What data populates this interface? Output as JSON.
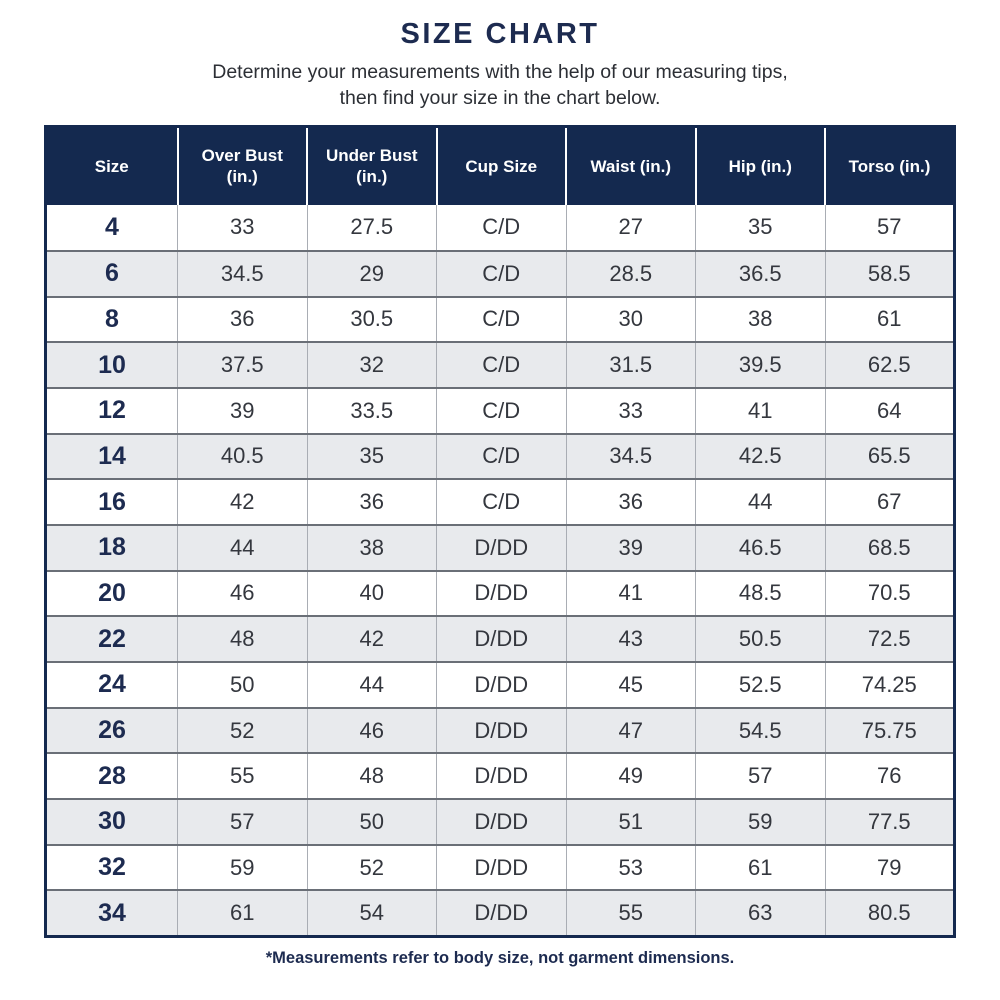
{
  "header": {
    "title": "SIZE CHART",
    "subtitle_line1": "Determine your measurements with the help of our measuring tips,",
    "subtitle_line2": "then find your size in the chart below."
  },
  "footnote": "*Measurements refer to body size, not garment dimensions.",
  "colors": {
    "navy": "#14294f",
    "title_navy": "#1d2b50",
    "row_alt_gray": "#e8eaed",
    "body_text": "#34373e",
    "row_border": "#6a6f77",
    "col_border": "#a9adb4"
  },
  "chart_data": {
    "type": "table",
    "title": "SIZE CHART",
    "columns": [
      "Size",
      "Over Bust (in.)",
      "Under Bust (in.)",
      "Cup Size",
      "Waist (in.)",
      "Hip (in.)",
      "Torso (in.)"
    ],
    "rows": [
      [
        "4",
        "33",
        "27.5",
        "C/D",
        "27",
        "35",
        "57"
      ],
      [
        "6",
        "34.5",
        "29",
        "C/D",
        "28.5",
        "36.5",
        "58.5"
      ],
      [
        "8",
        "36",
        "30.5",
        "C/D",
        "30",
        "38",
        "61"
      ],
      [
        "10",
        "37.5",
        "32",
        "C/D",
        "31.5",
        "39.5",
        "62.5"
      ],
      [
        "12",
        "39",
        "33.5",
        "C/D",
        "33",
        "41",
        "64"
      ],
      [
        "14",
        "40.5",
        "35",
        "C/D",
        "34.5",
        "42.5",
        "65.5"
      ],
      [
        "16",
        "42",
        "36",
        "C/D",
        "36",
        "44",
        "67"
      ],
      [
        "18",
        "44",
        "38",
        "D/DD",
        "39",
        "46.5",
        "68.5"
      ],
      [
        "20",
        "46",
        "40",
        "D/DD",
        "41",
        "48.5",
        "70.5"
      ],
      [
        "22",
        "48",
        "42",
        "D/DD",
        "43",
        "50.5",
        "72.5"
      ],
      [
        "24",
        "50",
        "44",
        "D/DD",
        "45",
        "52.5",
        "74.25"
      ],
      [
        "26",
        "52",
        "46",
        "D/DD",
        "47",
        "54.5",
        "75.75"
      ],
      [
        "28",
        "55",
        "48",
        "D/DD",
        "49",
        "57",
        "76"
      ],
      [
        "30",
        "57",
        "50",
        "D/DD",
        "51",
        "59",
        "77.5"
      ],
      [
        "32",
        "59",
        "52",
        "D/DD",
        "53",
        "61",
        "79"
      ],
      [
        "34",
        "61",
        "54",
        "D/DD",
        "55",
        "63",
        "80.5"
      ]
    ],
    "layout": {
      "row_striping": "alternating white / light gray starting white",
      "header_style": "navy background, white bold text",
      "size_column_style": "bold navy text"
    }
  }
}
